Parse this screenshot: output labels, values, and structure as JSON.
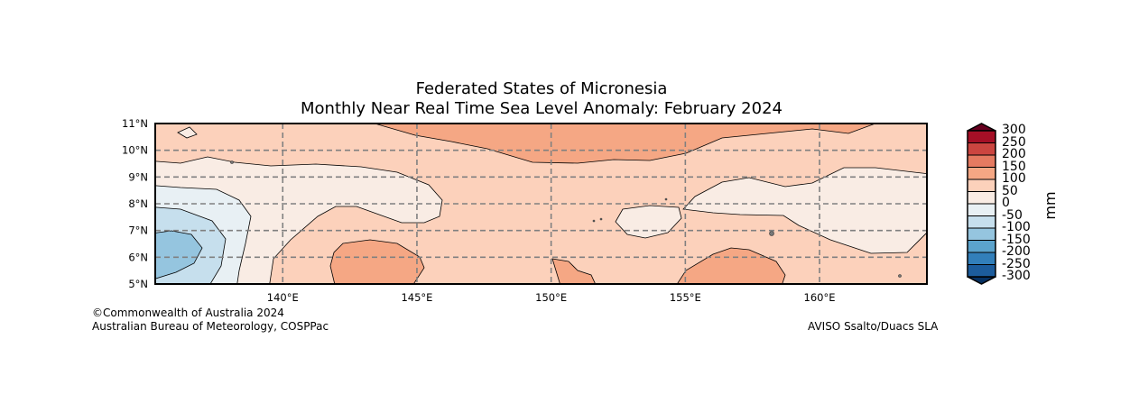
{
  "title_line1": "Federated States of Micronesia",
  "title_line2": "Monthly Near Real Time Sea Level Anomaly: February 2024",
  "credits": {
    "copyright": "©Commonwealth of Australia 2024",
    "agency": "Australian Bureau of Meteorology, COSPPac",
    "source": "AVISO Ssalto/Duacs SLA"
  },
  "chart_data": {
    "type": "heatmap",
    "subtype": "filled-contour-map",
    "variable": "Sea level anomaly",
    "units": "mm",
    "lon_range": [
      135.25,
      164.0
    ],
    "lat_range": [
      5,
      11
    ],
    "lon_ticks": [
      140,
      145,
      150,
      155,
      160
    ],
    "lon_tick_labels": [
      "140°E",
      "145°E",
      "150°E",
      "155°E",
      "160°E"
    ],
    "lat_ticks": [
      11,
      10,
      9,
      8,
      7,
      6,
      5
    ],
    "lat_tick_labels": [
      "11°N",
      "10°N",
      "9°N",
      "8°N",
      "7°N",
      "6°N",
      "5°N"
    ],
    "grid": true,
    "colorbar": {
      "label": "mm",
      "levels": [
        300,
        250,
        200,
        150,
        100,
        50,
        0,
        -50,
        -100,
        -150,
        -200,
        -250,
        -300
      ],
      "level_labels": [
        "300",
        "250",
        "200",
        "150",
        "100",
        "50",
        "0",
        "-50",
        "-100",
        "-150",
        "-200",
        "-250",
        "-300"
      ],
      "colors": [
        "#a50f26",
        "#cb4540",
        "#e47a61",
        "#f5a784",
        "#fcd1bb",
        "#f9ece4",
        "#e8f0f4",
        "#c6dfed",
        "#95c5df",
        "#5ba3cc",
        "#327fba",
        "#1c5c9c"
      ],
      "over_color": "#67001f",
      "under_color": "#053061"
    },
    "observed_ranges": [
      "-150 to -100 (west, ~6°N)",
      "-100 to 150 elsewhere",
      "100 to 150 along 10-11°N and patches near 5-6°N"
    ]
  }
}
